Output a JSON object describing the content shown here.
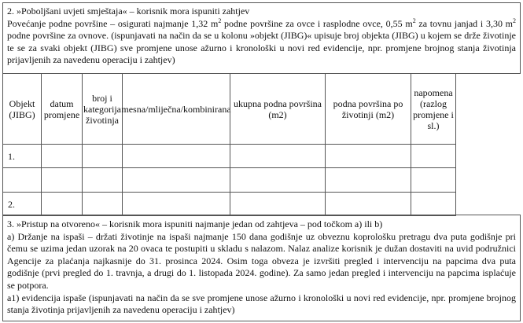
{
  "section2": {
    "title": "2. »Poboljšani uvjeti smještaja« – korisnik mora ispuniti zahtjev",
    "p1": "Povećanje podne površine – osigurati najmanje 1,32 m",
    "p2": " podne površine za ovce i rasplodne ovce, 0,55 m",
    "p3": " za tovnu janjad i 3,30 m",
    "p4": " podne površine za ovnove. (ispunjavati na način da se u kolonu »objekt (JIBG)« upisuje broj objekta (JIBG) u kojem se drže životinje te se za svaki objekt (JIBG) sve promjene unose ažurno i kronološki u novi red evidencije, npr. promjene brojnog stanja životinja prijavljenih za navedenu operaciju i zahtjev)",
    "sup": "2"
  },
  "table": {
    "headers": [
      "Objekt (JIBG)",
      "datum promjene",
      "broj i kategorija životinja",
      "mesna/mliječna/kombinirana",
      "ukupna podna površina (m2)",
      "podna površina po životinji (m2)",
      "napomena (razlog promjene i sl.)"
    ],
    "rows": [
      "1.",
      "",
      "2."
    ]
  },
  "section3": {
    "title": "3. »Pristup na otvoreno« – korisnik mora ispuniti najmanje jedan od zahtjeva – pod točkom a) ili b)",
    "a": "a) Držanje na ispaši – držati životinje na ispaši najmanje 150 dana godišnje uz obveznu koprološku pretragu dva puta godišnje pri čemu se uzima jedan uzorak na 20 ovaca te postupiti u skladu s nalazom. Nalaz analize korisnik je dužan dostaviti na uvid podružnici Agencije za plaćanja najkasnije do 31. prosinca 2024. Osim toga obveza je izvršiti pregled i intervenciju na papcima dva puta godišnje (prvi pregled do 1. travnja, a drugi do 1. listopada 2024. godine). Za samo jedan pregled i intervenciju na papcima isplaćuje se potpora.",
    "a1": "a1) evidencija ispaše (ispunjavati na način da se sve promjene unose ažurno i kronološki u novi red evidencije, npr. promjene brojnog stanja životinja prijavljenih za navedenu operaciju i zahtjev)"
  }
}
